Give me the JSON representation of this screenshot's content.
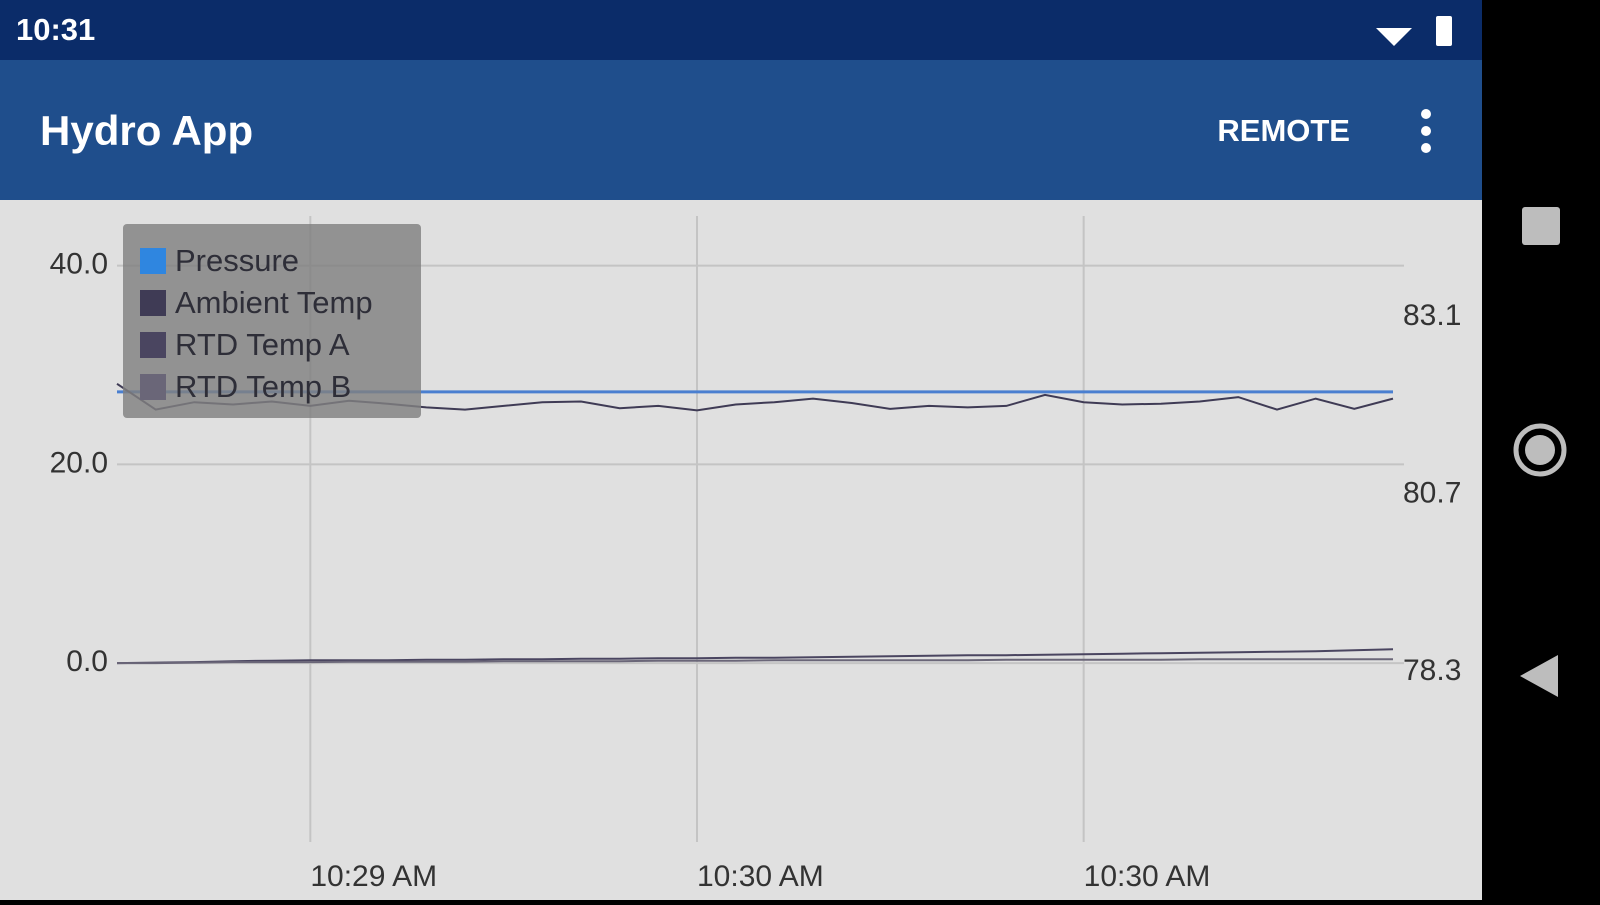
{
  "status_bar": {
    "time": "10:31"
  },
  "app_bar": {
    "title": "Hydro App",
    "action": "REMOTE"
  },
  "chart_data": {
    "type": "line",
    "categories": [
      null,
      null,
      null,
      null,
      null,
      "10:29 AM",
      null,
      null,
      null,
      null,
      null,
      null,
      null,
      null,
      null,
      "10:30 AM",
      null,
      null,
      null,
      null,
      null,
      null,
      null,
      null,
      null,
      "10:30 AM",
      null,
      null,
      null,
      null,
      null,
      null,
      null,
      null
    ],
    "ylim": [
      -18,
      45
    ],
    "yticks": [
      {
        "value": 0,
        "label": "0.0"
      },
      {
        "value": 20,
        "label": "20.0"
      },
      {
        "value": 40,
        "label": "40.0"
      }
    ],
    "y2lim": [
      76,
      84.47
    ],
    "y2ticks": [
      78.3,
      80.7,
      83.1
    ],
    "grid": true,
    "legend": "upper left",
    "series": [
      {
        "name": "Pressure",
        "color": "#4a7fd0",
        "legend_color": "#2f86e0",
        "values": [
          27.3,
          27.3,
          27.3,
          27.3,
          27.3,
          27.3,
          27.3,
          27.3,
          27.3,
          27.3,
          27.3,
          27.3,
          27.3,
          27.3,
          27.3,
          27.3,
          27.3,
          27.3,
          27.3,
          27.3,
          27.3,
          27.3,
          27.3,
          27.3,
          27.3,
          27.3,
          27.3,
          27.3,
          27.3,
          27.3,
          27.3,
          27.3,
          27.3,
          27.3
        ]
      },
      {
        "name": "Ambient Temp",
        "color": "#3f3b55",
        "axis": "y2",
        "values": [
          82.2,
          81.85,
          81.95,
          81.92,
          81.96,
          81.9,
          81.97,
          81.93,
          81.88,
          81.85,
          81.9,
          81.95,
          81.96,
          81.87,
          81.9,
          81.84,
          81.92,
          81.95,
          82.0,
          81.94,
          81.86,
          81.9,
          81.88,
          81.9,
          82.05,
          81.95,
          81.92,
          81.93,
          81.96,
          82.02,
          81.85,
          82.0,
          81.86,
          82.0
        ]
      },
      {
        "name": "RTD Temp A",
        "color": "#4a4560",
        "values": [
          0,
          0.05,
          0.1,
          0.2,
          0.25,
          0.3,
          0.3,
          0.3,
          0.35,
          0.35,
          0.4,
          0.4,
          0.45,
          0.45,
          0.5,
          0.5,
          0.55,
          0.55,
          0.6,
          0.65,
          0.7,
          0.75,
          0.8,
          0.8,
          0.85,
          0.9,
          0.95,
          1.0,
          1.05,
          1.1,
          1.15,
          1.2,
          1.3,
          1.4
        ]
      },
      {
        "name": "RTD Temp B",
        "color": "#6a6678",
        "values": [
          0,
          0,
          0.05,
          0.1,
          0.1,
          0.1,
          0.15,
          0.15,
          0.15,
          0.15,
          0.2,
          0.2,
          0.2,
          0.2,
          0.25,
          0.25,
          0.25,
          0.3,
          0.3,
          0.3,
          0.3,
          0.3,
          0.3,
          0.35,
          0.35,
          0.35,
          0.35,
          0.35,
          0.4,
          0.4,
          0.4,
          0.4,
          0.4,
          0.4
        ]
      }
    ]
  }
}
